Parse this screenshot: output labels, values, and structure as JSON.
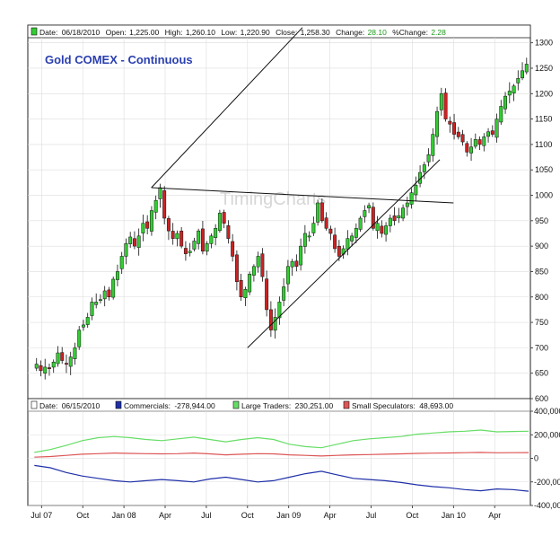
{
  "colors": {
    "up": "#33cc33",
    "down": "#cc2222",
    "commercials": "#1f2fa8",
    "large_traders": "#66dd66",
    "small_speculators": "#dd5555",
    "title": "#2a3fb0",
    "change": "#1a9a1a"
  },
  "header": {
    "date_label": "Date:",
    "date": "06/18/2010",
    "open_label": "Open:",
    "open": "1,225.00",
    "high_label": "High:",
    "high": "1,260.10",
    "low_label": "Low:",
    "low": "1,220.90",
    "close_label": "Close:",
    "close": "1,258.30",
    "change_label": "Change:",
    "change": "28.10",
    "pct_label": "%Change:",
    "pct": "2.28"
  },
  "lower_header": {
    "date_label": "Date:",
    "date": "06/15/2010",
    "commercials_label": "Commercials:",
    "commercials": "-278,944.00",
    "large_label": "Large Traders:",
    "large": "230,251.00",
    "small_label": "Small Speculators:",
    "small": "48,693.00"
  },
  "chart_data": [
    {
      "type": "candlestick",
      "title": "Gold COMEX - Continuous",
      "watermark": "TimingCharts",
      "ylim": [
        600,
        1310
      ],
      "yticks": [
        600,
        650,
        700,
        750,
        800,
        850,
        900,
        950,
        1000,
        1050,
        1100,
        1150,
        1200,
        1250,
        1300
      ],
      "xticks": [
        "Jul 07",
        "Oct",
        "Jan 08",
        "Apr",
        "Jul",
        "Oct",
        "Jan 09",
        "Apr",
        "Jul",
        "Oct",
        "Jan 10",
        "Apr"
      ],
      "x_start": "2007-06",
      "x_end": "2010-06",
      "closes": [
        668,
        655,
        662,
        660,
        672,
        690,
        675,
        668,
        682,
        700,
        735,
        745,
        760,
        790,
        790,
        795,
        812,
        800,
        835,
        850,
        880,
        905,
        918,
        900,
        920,
        945,
        935,
        970,
        990,
        1015,
        955,
        930,
        915,
        925,
        900,
        885,
        890,
        910,
        930,
        890,
        905,
        920,
        935,
        965,
        945,
        915,
        880,
        830,
        800,
        815,
        845,
        860,
        880,
        840,
        775,
        735,
        760,
        790,
        820,
        860,
        870,
        860,
        900,
        925,
        920,
        945,
        985,
        950,
        935,
        925,
        895,
        880,
        895,
        915,
        920,
        935,
        955,
        970,
        980,
        935,
        945,
        925,
        940,
        955,
        950,
        960,
        975,
        985,
        1005,
        1020,
        1045,
        1060,
        1080,
        1120,
        1165,
        1200,
        1150,
        1140,
        1120,
        1115,
        1105,
        1085,
        1095,
        1110,
        1100,
        1115,
        1125,
        1120,
        1150,
        1175,
        1195,
        1205,
        1215,
        1230,
        1245,
        1258
      ],
      "trendlines": [
        {
          "from": [
            "2008-03",
            1015
          ],
          "to": [
            "2009-02",
            1330
          ]
        },
        {
          "from": [
            "2008-03",
            1015
          ],
          "to": [
            "2010-01",
            985
          ]
        },
        {
          "from": [
            "2008-10",
            700
          ],
          "to": [
            "2009-12",
            1070
          ]
        }
      ]
    },
    {
      "type": "line",
      "ylim": [
        -400000,
        400000
      ],
      "yticks": [
        400000,
        200000,
        0,
        -200000,
        -400000
      ],
      "ytick_labels": [
        "400,000",
        "200,000",
        "0",
        "-200,000",
        "-400,000"
      ],
      "series": [
        {
          "name": "Commercials",
          "values": [
            -60000,
            -80000,
            -120000,
            -150000,
            -170000,
            -190000,
            -200000,
            -190000,
            -180000,
            -190000,
            -200000,
            -175000,
            -160000,
            -180000,
            -200000,
            -190000,
            -160000,
            -130000,
            -110000,
            -140000,
            -170000,
            -180000,
            -190000,
            -205000,
            -225000,
            -240000,
            -250000,
            -265000,
            -275000,
            -260000,
            -265000,
            -279000
          ]
        },
        {
          "name": "Large Traders",
          "values": [
            50000,
            75000,
            110000,
            150000,
            175000,
            185000,
            175000,
            160000,
            150000,
            165000,
            180000,
            160000,
            140000,
            160000,
            175000,
            160000,
            120000,
            100000,
            90000,
            120000,
            150000,
            165000,
            175000,
            185000,
            205000,
            215000,
            225000,
            230000,
            240000,
            225000,
            228000,
            230000
          ]
        },
        {
          "name": "Small Speculators",
          "values": [
            10000,
            15000,
            25000,
            35000,
            40000,
            45000,
            42000,
            40000,
            38000,
            40000,
            45000,
            38000,
            30000,
            35000,
            40000,
            38000,
            30000,
            25000,
            20000,
            25000,
            30000,
            32000,
            35000,
            38000,
            42000,
            44000,
            46000,
            48000,
            50000,
            47000,
            48000,
            48693
          ]
        }
      ]
    }
  ]
}
